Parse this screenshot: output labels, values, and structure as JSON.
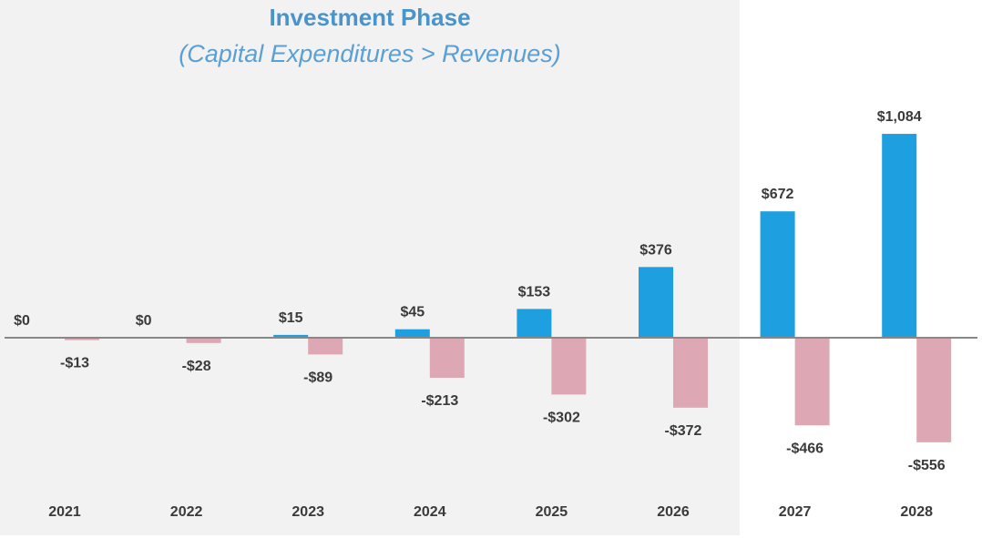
{
  "chart_data": {
    "type": "bar",
    "title": "Investment Phase",
    "subtitle": "(Capital Expenditures > Revenues)",
    "categories": [
      "2021",
      "2022",
      "2023",
      "2024",
      "2025",
      "2026",
      "2027",
      "2028"
    ],
    "series": [
      {
        "values": [
          0,
          0,
          15,
          45,
          153,
          376,
          672,
          1084
        ],
        "labels": [
          "$0",
          "$0",
          "$15",
          "$45",
          "$153",
          "$376",
          "$672",
          "$1,084"
        ],
        "color": "#1e9fe0"
      },
      {
        "values": [
          -13,
          -28,
          -89,
          -213,
          -302,
          -372,
          -466,
          -556
        ],
        "labels": [
          "-$13",
          "-$28",
          "-$89",
          "-$213",
          "-$302",
          "-$372",
          "-$466",
          "-$556"
        ],
        "color": "#dda8b3"
      }
    ],
    "shaded_categories": [
      "2021",
      "2022",
      "2023",
      "2024",
      "2025",
      "2026"
    ],
    "shade_color": "#f2f2f2",
    "axis_color": "#888888",
    "ylim": [
      -600,
      1150
    ],
    "grid": false,
    "legend": "none"
  }
}
